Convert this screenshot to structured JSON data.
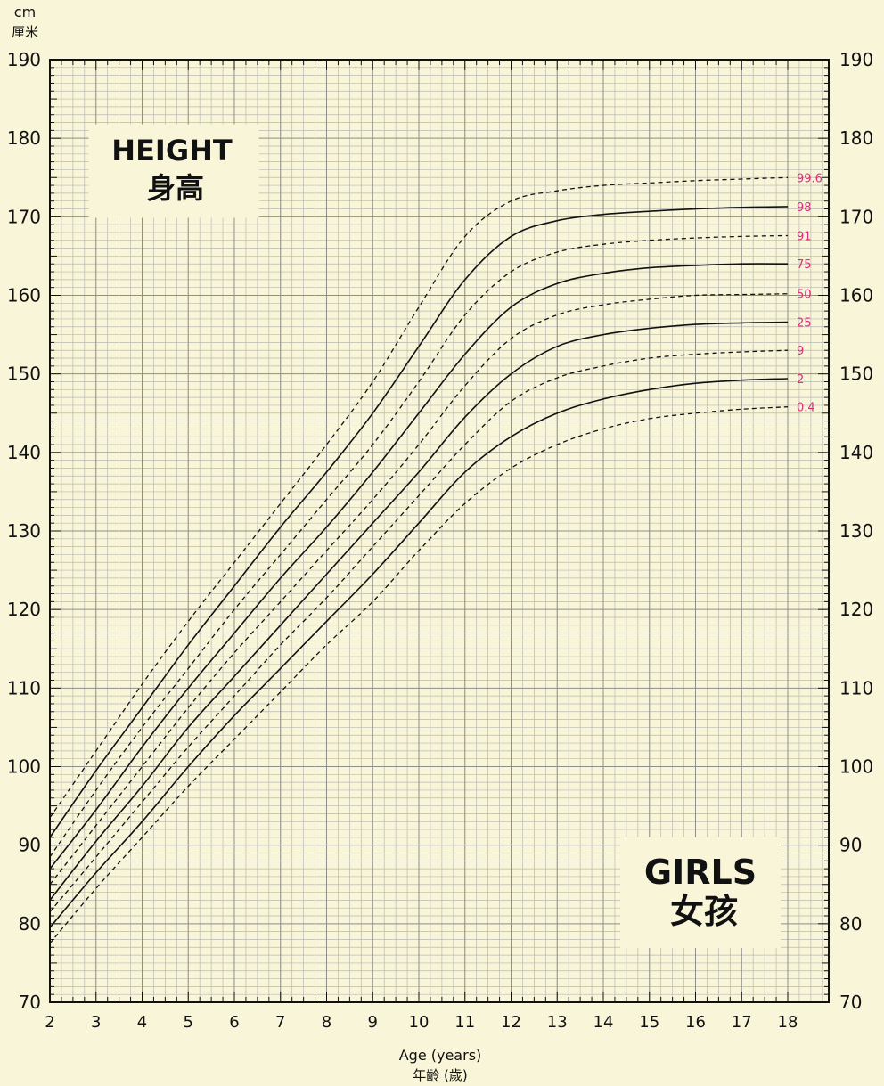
{
  "chart_data": {
    "type": "line",
    "title": "HEIGHT",
    "title_cn": "身高",
    "subtitle": "GIRLS",
    "subtitle_cn": "女孩",
    "ylabel": "cm",
    "ylabel_cn": "厘米",
    "xlabel": "Age (years)",
    "xlabel_cn": "年齡 (歲)",
    "xlim": [
      2,
      18
    ],
    "ylim": [
      70,
      190
    ],
    "x_ticks": [
      "2",
      "3",
      "4",
      "5",
      "6",
      "7",
      "8",
      "9",
      "10",
      "11",
      "12",
      "13",
      "14",
      "15",
      "16",
      "17",
      "18"
    ],
    "y_ticks": [
      "70",
      "80",
      "90",
      "100",
      "110",
      "120",
      "130",
      "140",
      "150",
      "160",
      "170",
      "180",
      "190"
    ],
    "grid": true,
    "x": [
      2,
      3,
      4,
      5,
      6,
      7,
      8,
      9,
      10,
      11,
      12,
      13,
      14,
      15,
      16,
      17,
      18
    ],
    "series": [
      {
        "name": "99.6",
        "dashed": true,
        "values": [
          93.5,
          102,
          110.5,
          118.5,
          126,
          133.5,
          141,
          149,
          158.5,
          167.5,
          172,
          173.3,
          174,
          174.3,
          174.6,
          174.8,
          175
        ]
      },
      {
        "name": "98",
        "dashed": false,
        "values": [
          91,
          99.5,
          107.5,
          115.5,
          123,
          130.5,
          137.5,
          145,
          153.5,
          162,
          167.5,
          169.5,
          170.3,
          170.7,
          171,
          171.2,
          171.3
        ]
      },
      {
        "name": "91",
        "dashed": true,
        "values": [
          88.5,
          97,
          105,
          112.5,
          120,
          127,
          134,
          141,
          149,
          157.5,
          163,
          165.5,
          166.5,
          167,
          167.3,
          167.5,
          167.6
        ]
      },
      {
        "name": "75",
        "dashed": false,
        "values": [
          87,
          94.5,
          102.5,
          110,
          117,
          124,
          130.5,
          137.5,
          145,
          152.5,
          158.5,
          161.5,
          162.8,
          163.5,
          163.8,
          164,
          164
        ]
      },
      {
        "name": "50",
        "dashed": true,
        "values": [
          85,
          92.5,
          100,
          107.5,
          114.5,
          121,
          127.5,
          134,
          141,
          148.5,
          154.5,
          157.5,
          158.8,
          159.5,
          160,
          160.1,
          160.2
        ]
      },
      {
        "name": "25",
        "dashed": false,
        "values": [
          83,
          90.5,
          97.5,
          105,
          111.5,
          118,
          124.5,
          131,
          137.5,
          144.5,
          150,
          153.5,
          155,
          155.8,
          156.3,
          156.5,
          156.6
        ]
      },
      {
        "name": "9",
        "dashed": true,
        "values": [
          81.5,
          88.5,
          95.5,
          102.5,
          109,
          115.5,
          121.5,
          128,
          134.5,
          141,
          146.5,
          149.5,
          151,
          152,
          152.5,
          152.8,
          153
        ]
      },
      {
        "name": "2",
        "dashed": false,
        "values": [
          79.5,
          86.5,
          93,
          100,
          106.5,
          112.5,
          118.5,
          124.5,
          131,
          137.5,
          142,
          145,
          146.8,
          148,
          148.8,
          149.2,
          149.4
        ]
      },
      {
        "name": "0.4",
        "dashed": true,
        "values": [
          77.5,
          84.5,
          91,
          97.5,
          103.5,
          109.5,
          115.5,
          121,
          127.5,
          133.5,
          138,
          141,
          143,
          144.3,
          145,
          145.5,
          145.8
        ]
      }
    ]
  }
}
